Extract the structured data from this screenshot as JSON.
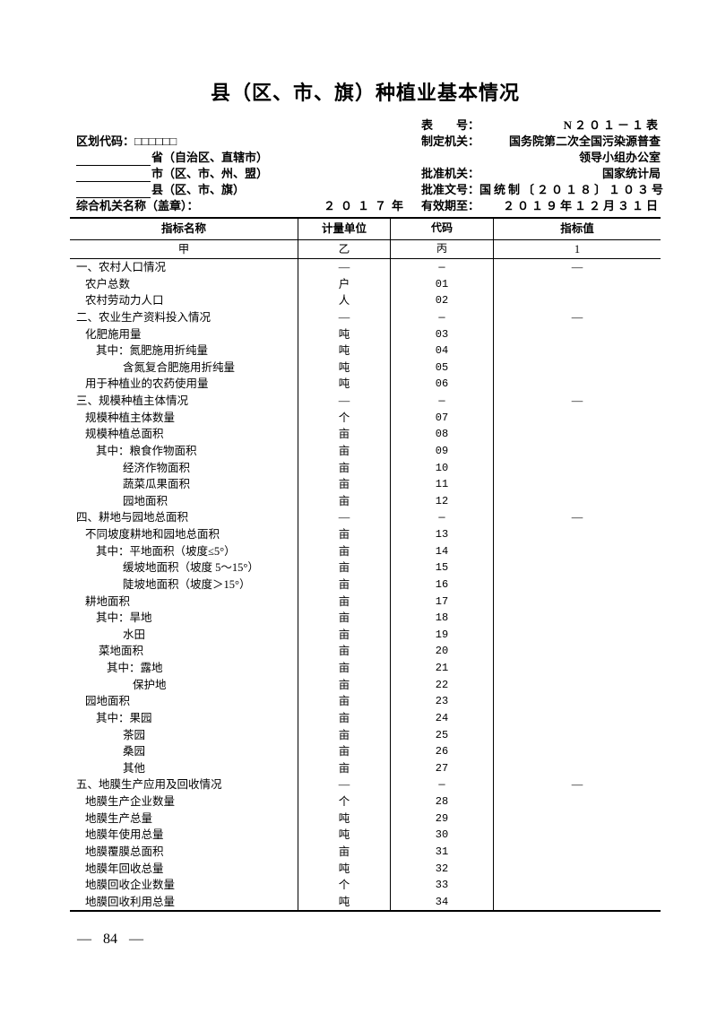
{
  "title": "县（区、市、旗）种植业基本情况",
  "header": {
    "form_no_label": "表　　号：",
    "form_no_value": "N２０１－１表",
    "region_code_label": "区划代码：",
    "region_code_boxes": "□□□□□□",
    "maker_label": "制定机关：",
    "maker_value_line1": "国务院第二次全国污染源普查",
    "maker_value_line2": "领导小组办公室",
    "province_suffix": "省（自治区、直辖市）",
    "city_suffix": "市（区、市、州、盟）",
    "county_suffix": "县（区、市、旗）",
    "approver_label": "批准机关：",
    "approver_value": "国家统计局",
    "doc_no_label": "批准文号：",
    "doc_no_value": "国统制〔２０１８〕１０３号",
    "org_label": "综合机关名称（盖章）：",
    "year": "２０１７年",
    "valid_label": "有效期至：",
    "valid_value": "２０１９年１２月３１日"
  },
  "table": {
    "columns": [
      "指标名称",
      "计量单位",
      "代码",
      "指标值"
    ],
    "col_keys": [
      "甲",
      "乙",
      "丙",
      "1"
    ],
    "rows": [
      {
        "name": "一、农村人口情况",
        "unit": "—",
        "code": "—",
        "value": "—",
        "ind": 0,
        "section": true
      },
      {
        "name": "农户总数",
        "unit": "户",
        "code": "01",
        "value": "",
        "ind": 1
      },
      {
        "name": "农村劳动力人口",
        "unit": "人",
        "code": "02",
        "value": "",
        "ind": 1
      },
      {
        "name": "二、农业生产资料投入情况",
        "unit": "—",
        "code": "—",
        "value": "—",
        "ind": 0,
        "section": true
      },
      {
        "name": "化肥施用量",
        "unit": "吨",
        "code": "03",
        "value": "",
        "ind": 1
      },
      {
        "name": "其中：氮肥施用折纯量",
        "unit": "吨",
        "code": "04",
        "value": "",
        "ind": 2
      },
      {
        "name": "含氮复合肥施用折纯量",
        "unit": "吨",
        "code": "05",
        "value": "",
        "ind": 3
      },
      {
        "name": "用于种植业的农药使用量",
        "unit": "吨",
        "code": "06",
        "value": "",
        "ind": 1
      },
      {
        "name": "三、规模种植主体情况",
        "unit": "—",
        "code": "—",
        "value": "—",
        "ind": 0,
        "section": true
      },
      {
        "name": "规模种植主体数量",
        "unit": "个",
        "code": "07",
        "value": "",
        "ind": 1
      },
      {
        "name": "规模种植总面积",
        "unit": "亩",
        "code": "08",
        "value": "",
        "ind": 1
      },
      {
        "name": "其中：粮食作物面积",
        "unit": "亩",
        "code": "09",
        "value": "",
        "ind": 2
      },
      {
        "name": "经济作物面积",
        "unit": "亩",
        "code": "10",
        "value": "",
        "ind": 3
      },
      {
        "name": "蔬菜瓜果面积",
        "unit": "亩",
        "code": "11",
        "value": "",
        "ind": 3
      },
      {
        "name": "园地面积",
        "unit": "亩",
        "code": "12",
        "value": "",
        "ind": 3
      },
      {
        "name": "四、耕地与园地总面积",
        "unit": "—",
        "code": "—",
        "value": "—",
        "ind": 0,
        "section": true
      },
      {
        "name": "不同坡度耕地和园地总面积",
        "unit": "亩",
        "code": "13",
        "value": "",
        "ind": 1
      },
      {
        "name": "其中：平地面积（坡度≤5°）",
        "unit": "亩",
        "code": "14",
        "value": "",
        "ind": 2
      },
      {
        "name": "缓坡地面积（坡度 5～15°）",
        "unit": "亩",
        "code": "15",
        "value": "",
        "ind": 3
      },
      {
        "name": "陡坡地面积（坡度＞15°）",
        "unit": "亩",
        "code": "16",
        "value": "",
        "ind": 3
      },
      {
        "name": "耕地面积",
        "unit": "亩",
        "code": "17",
        "value": "",
        "ind": 1
      },
      {
        "name": "其中：旱地",
        "unit": "亩",
        "code": "18",
        "value": "",
        "ind": 2
      },
      {
        "name": "水田",
        "unit": "亩",
        "code": "19",
        "value": "",
        "ind": 3
      },
      {
        "name": "菜地面积",
        "unit": "亩",
        "code": "20",
        "value": "",
        "ind": 4
      },
      {
        "name": "其中：露地",
        "unit": "亩",
        "code": "21",
        "value": "",
        "ind": 5
      },
      {
        "name": "保护地",
        "unit": "亩",
        "code": "22",
        "value": "",
        "ind": 6
      },
      {
        "name": "园地面积",
        "unit": "亩",
        "code": "23",
        "value": "",
        "ind": 1
      },
      {
        "name": "其中：果园",
        "unit": "亩",
        "code": "24",
        "value": "",
        "ind": 2
      },
      {
        "name": "茶园",
        "unit": "亩",
        "code": "25",
        "value": "",
        "ind": 3
      },
      {
        "name": "桑园",
        "unit": "亩",
        "code": "26",
        "value": "",
        "ind": 3
      },
      {
        "name": "其他",
        "unit": "亩",
        "code": "27",
        "value": "",
        "ind": 3
      },
      {
        "name": "五、地膜生产应用及回收情况",
        "unit": "—",
        "code": "—",
        "value": "—",
        "ind": 0,
        "section": true
      },
      {
        "name": "地膜生产企业数量",
        "unit": "个",
        "code": "28",
        "value": "",
        "ind": 1
      },
      {
        "name": "地膜生产总量",
        "unit": "吨",
        "code": "29",
        "value": "",
        "ind": 1
      },
      {
        "name": "地膜年使用总量",
        "unit": "吨",
        "code": "30",
        "value": "",
        "ind": 1
      },
      {
        "name": "地膜覆膜总面积",
        "unit": "亩",
        "code": "31",
        "value": "",
        "ind": 1
      },
      {
        "name": "地膜年回收总量",
        "unit": "吨",
        "code": "32",
        "value": "",
        "ind": 1
      },
      {
        "name": "地膜回收企业数量",
        "unit": "个",
        "code": "33",
        "value": "",
        "ind": 1
      },
      {
        "name": "地膜回收利用总量",
        "unit": "吨",
        "code": "34",
        "value": "",
        "ind": 1
      }
    ]
  },
  "footer": {
    "dash": "—",
    "page_number": "84"
  }
}
